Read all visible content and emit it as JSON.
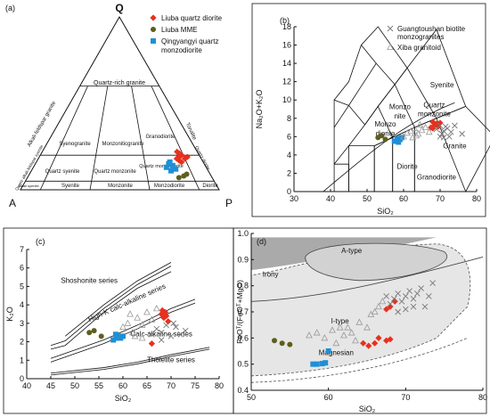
{
  "colors": {
    "liuba_qd": "#e8301c",
    "liuba_mme": "#5e5e1e",
    "qingyangyi": "#1f8fd6",
    "cross": "#777777",
    "triangle": "#999999",
    "irony_fill": "#aaaaaa",
    "itype_fill": "#e6e6e6",
    "atype_fill": "#d2d2d2"
  },
  "chart_data": [
    {
      "id": "a",
      "type": "scatter",
      "panel_label": "(a)",
      "apex_labels": {
        "top": "Q",
        "left": "A",
        "right": "P"
      },
      "legend": [
        {
          "name": "Liuba quartz diorite",
          "marker": "diamond",
          "color": "#e8301c"
        },
        {
          "name": "Liuba MME",
          "marker": "circle",
          "color": "#5e5e1e"
        },
        {
          "name": "Qingyangyi quartz monzodiorite",
          "marker": "square",
          "color": "#1f8fd6"
        }
      ],
      "field_labels": [
        "Quartz-rich granite",
        "Alkali-feldspar granite",
        "Syenogranite",
        "Monzoniticgranite",
        "Granodiorite",
        "Tonalite",
        "Quartz alkali-feldspar syenite",
        "Quartz syenite",
        "Quartz monzonite",
        "Quartz monzodiorite",
        "Quartz diorite",
        "Alkali syenite",
        "Syenite",
        "Monzonite",
        "Monzodiorite",
        "Diorite"
      ],
      "series": [
        {
          "name": "Liuba quartz diorite",
          "points": [
            [
              18,
              75
            ],
            [
              19,
              72
            ],
            [
              17,
              71
            ],
            [
              20,
              74
            ],
            [
              16,
              72
            ],
            [
              18,
              70
            ],
            [
              21,
              73
            ],
            [
              19,
              77
            ],
            [
              22,
              72
            ]
          ]
        },
        {
          "name": "Liuba MME",
          "points": [
            [
              8,
              70
            ],
            [
              9,
              72
            ],
            [
              7,
              67
            ]
          ]
        },
        {
          "name": "Qingyangyi quartz monzodiorite",
          "points": [
            [
              14,
              66
            ],
            [
              15,
              64
            ],
            [
              12,
              67
            ],
            [
              13,
              62
            ],
            [
              16,
              65
            ],
            [
              11,
              64
            ]
          ]
        }
      ]
    },
    {
      "id": "b",
      "type": "scatter",
      "panel_label": "(b)",
      "xlabel": "SiO₂",
      "ylabel": "Na₂O+K₂O",
      "xlim": [
        30,
        80
      ],
      "ylim": [
        0,
        18
      ],
      "xticks": [
        "30",
        "40",
        "50",
        "60",
        "70",
        "80"
      ],
      "yticks": [
        "0",
        "2",
        "4",
        "6",
        "8",
        "10",
        "12",
        "14",
        "16",
        "18"
      ],
      "legend": [
        {
          "name": "Guangtoushan biotite monzogranites",
          "marker": "cross",
          "color": "#777777"
        },
        {
          "name": "Xiba granitoid",
          "marker": "triangle",
          "color": "#999999"
        }
      ],
      "field_labels": [
        "Syenite",
        "Quartz monzonite",
        "Monzo nite",
        "Monzo diorite",
        "Granite",
        "Diorite",
        "Granodiorite"
      ],
      "series": [
        {
          "name": "Liuba quartz diorite",
          "points": [
            [
              68,
              7.6
            ],
            [
              68.5,
              7.2
            ],
            [
              69,
              7.4
            ],
            [
              67.5,
              7.0
            ],
            [
              70,
              7.5
            ],
            [
              68,
              6.9
            ],
            [
              69.5,
              7.1
            ]
          ]
        },
        {
          "name": "Liuba MME",
          "points": [
            [
              53,
              5.9
            ],
            [
              54,
              6.1
            ],
            [
              55,
              5.7
            ]
          ]
        },
        {
          "name": "Qingyangyi quartz monzodiorite",
          "points": [
            [
              57.5,
              5.5
            ],
            [
              58.3,
              5.8
            ],
            [
              59,
              5.7
            ],
            [
              58.6,
              5.4
            ],
            [
              59.5,
              5.9
            ]
          ]
        },
        {
          "name": "Guangtoushan biotite monzogranites",
          "points": [
            [
              69,
              6.8
            ],
            [
              70,
              7.2
            ],
            [
              71,
              6.6
            ],
            [
              72,
              6.9
            ],
            [
              70.5,
              6.3
            ],
            [
              71.5,
              7.1
            ],
            [
              73,
              6.5
            ],
            [
              72.5,
              6.0
            ],
            [
              70,
              6.0
            ],
            [
              74,
              7.2
            ],
            [
              71,
              5.9
            ],
            [
              76,
              6.3
            ]
          ]
        },
        {
          "name": "Xiba granitoid",
          "points": [
            [
              60,
              6.0
            ],
            [
              61,
              6.4
            ],
            [
              62,
              6.6
            ],
            [
              63,
              6.9
            ],
            [
              64,
              6.3
            ],
            [
              65,
              6.7
            ],
            [
              66,
              7.0
            ],
            [
              62.5,
              5.9
            ],
            [
              64.5,
              7.3
            ],
            [
              67,
              6.5
            ],
            [
              63.5,
              6.1
            ]
          ]
        }
      ]
    },
    {
      "id": "c",
      "type": "scatter",
      "panel_label": "(c)",
      "xlabel": "SiO₂",
      "ylabel": "K₂O",
      "xlim": [
        40,
        80
      ],
      "ylim": [
        0,
        7
      ],
      "xticks": [
        "40",
        "45",
        "50",
        "55",
        "60",
        "65",
        "70",
        "75",
        "80"
      ],
      "yticks": [
        "0",
        "1",
        "2",
        "3",
        "4",
        "5",
        "6",
        "7"
      ],
      "field_labels": [
        "Shoshonite series",
        "High-K calc-alkaline series",
        "Calc-alkaline series",
        "Tholeiite series"
      ],
      "series": [
        {
          "name": "Liuba quartz diorite",
          "points": [
            [
              68,
              3.5
            ],
            [
              68.5,
              3.3
            ],
            [
              69,
              3.4
            ],
            [
              68.2,
              3.7
            ],
            [
              69.4,
              3.1
            ],
            [
              68.8,
              3.6
            ],
            [
              66,
              1.9
            ]
          ]
        },
        {
          "name": "Liuba MME",
          "points": [
            [
              53,
              2.5
            ],
            [
              54,
              2.6
            ],
            [
              55.5,
              2.3
            ]
          ]
        },
        {
          "name": "Qingyangyi quartz monzodiorite",
          "points": [
            [
              58,
              2.1
            ],
            [
              59,
              2.3
            ],
            [
              59.5,
              2.2
            ],
            [
              58.5,
              2.4
            ],
            [
              60,
              2.3
            ],
            [
              58.8,
              2.2
            ]
          ]
        },
        {
          "name": "Guangtoushan biotite monzogranites",
          "points": [
            [
              66,
              2.4
            ],
            [
              67,
              2.7
            ],
            [
              68,
              2.5
            ],
            [
              69,
              2.9
            ],
            [
              70,
              2.3
            ],
            [
              71,
              2.8
            ],
            [
              72,
              2.4
            ],
            [
              73,
              2.6
            ],
            [
              70.5,
              3.0
            ],
            [
              68,
              2.1
            ]
          ]
        },
        {
          "name": "Xiba granitoid",
          "points": [
            [
              60,
              2.8
            ],
            [
              61,
              3.0
            ],
            [
              62,
              2.5
            ],
            [
              63,
              3.3
            ],
            [
              64,
              2.9
            ],
            [
              65,
              3.6
            ],
            [
              66,
              3.2
            ],
            [
              62.5,
              2.3
            ],
            [
              67,
              3.8
            ],
            [
              64,
              2.2
            ],
            [
              61.5,
              3.5
            ]
          ]
        }
      ]
    },
    {
      "id": "d",
      "type": "scatter",
      "panel_label": "(d)",
      "xlabel": "SiO₂",
      "ylabel": "FeOᵀ/(FeOᵀ+MgO)",
      "xlim": [
        50,
        80
      ],
      "ylim": [
        0.4,
        1.0
      ],
      "xticks": [
        "50",
        "60",
        "70",
        "80"
      ],
      "yticks": [
        "0.4",
        "0.5",
        "0.6",
        "0.7",
        "0.8",
        "0.9",
        "1.0"
      ],
      "field_labels": [
        "A-type",
        "Irony",
        "I-type",
        "Magnesian"
      ],
      "series": [
        {
          "name": "Liuba quartz diorite",
          "points": [
            [
              68,
              0.72
            ],
            [
              68.6,
              0.74
            ],
            [
              67.5,
              0.71
            ],
            [
              66.5,
              0.6
            ],
            [
              67.5,
              0.59
            ],
            [
              66,
              0.58
            ],
            [
              65.2,
              0.57
            ],
            [
              64.5,
              0.58
            ],
            [
              68,
              0.595
            ]
          ]
        },
        {
          "name": "Liuba MME",
          "points": [
            [
              53,
              0.59
            ],
            [
              54,
              0.58
            ],
            [
              55,
              0.575
            ]
          ]
        },
        {
          "name": "Qingyangyi quartz monzodiorite",
          "points": [
            [
              58.5,
              0.5
            ],
            [
              59.2,
              0.502
            ],
            [
              59.6,
              0.505
            ],
            [
              60,
              0.55
            ],
            [
              58,
              0.5
            ]
          ]
        },
        {
          "name": "Guangtoushan biotite monzogranites",
          "points": [
            [
              68,
              0.73
            ],
            [
              68.5,
              0.75
            ],
            [
              69,
              0.77
            ],
            [
              69.5,
              0.74
            ],
            [
              70,
              0.76
            ],
            [
              70.5,
              0.78
            ],
            [
              71,
              0.75
            ],
            [
              71.5,
              0.77
            ],
            [
              72,
              0.79
            ],
            [
              72.5,
              0.72
            ],
            [
              73,
              0.76
            ],
            [
              73.5,
              0.81
            ],
            [
              70,
              0.71
            ],
            [
              69,
              0.7
            ],
            [
              71,
              0.72
            ],
            [
              67.5,
              0.76
            ]
          ]
        },
        {
          "name": "Xiba granitoid",
          "points": [
            [
              57.5,
              0.61
            ],
            [
              58.5,
              0.62
            ],
            [
              59.5,
              0.6
            ],
            [
              60.5,
              0.63
            ],
            [
              61,
              0.58
            ],
            [
              62,
              0.61
            ],
            [
              62.5,
              0.64
            ],
            [
              63,
              0.62
            ],
            [
              64,
              0.66
            ],
            [
              65,
              0.64
            ],
            [
              65.5,
              0.69
            ],
            [
              66,
              0.7
            ],
            [
              66.5,
              0.72
            ],
            [
              67,
              0.74
            ],
            [
              63.5,
              0.59
            ],
            [
              61.5,
              0.64
            ]
          ]
        }
      ]
    }
  ]
}
